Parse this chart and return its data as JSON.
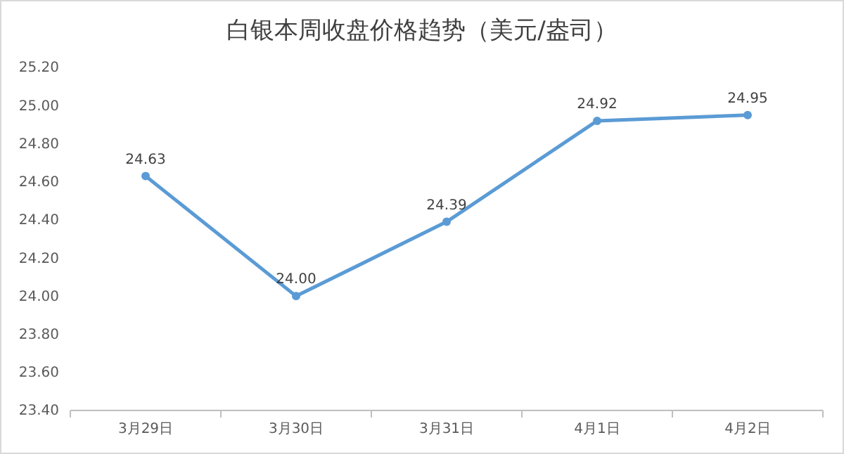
{
  "chart_data": {
    "type": "line",
    "title": "白银本周收盘价格趋势（美元/盎司）",
    "categories": [
      "3月29日",
      "3月30日",
      "3月31日",
      "4月1日",
      "4月2日"
    ],
    "series": [
      {
        "color": "#5b9bd5",
        "values": [
          24.63,
          24.0,
          24.39,
          24.92,
          24.95
        ],
        "value_labels": [
          "24.63",
          "24.00",
          "24.39",
          "24.92",
          "24.95"
        ]
      }
    ],
    "ylim": [
      23.4,
      25.2
    ],
    "yticks": [
      {
        "value": 23.4,
        "label": "23.40"
      },
      {
        "value": 23.6,
        "label": "23.60"
      },
      {
        "value": 23.8,
        "label": "23.80"
      },
      {
        "value": 24.0,
        "label": "24.00"
      },
      {
        "value": 24.2,
        "label": "24.20"
      },
      {
        "value": 24.4,
        "label": "24.40"
      },
      {
        "value": 24.6,
        "label": "24.60"
      },
      {
        "value": 24.8,
        "label": "24.80"
      },
      {
        "value": 25.0,
        "label": "25.00"
      },
      {
        "value": 25.2,
        "label": "25.20"
      }
    ],
    "marker": "circle",
    "line_style": "solid",
    "grid": false
  }
}
